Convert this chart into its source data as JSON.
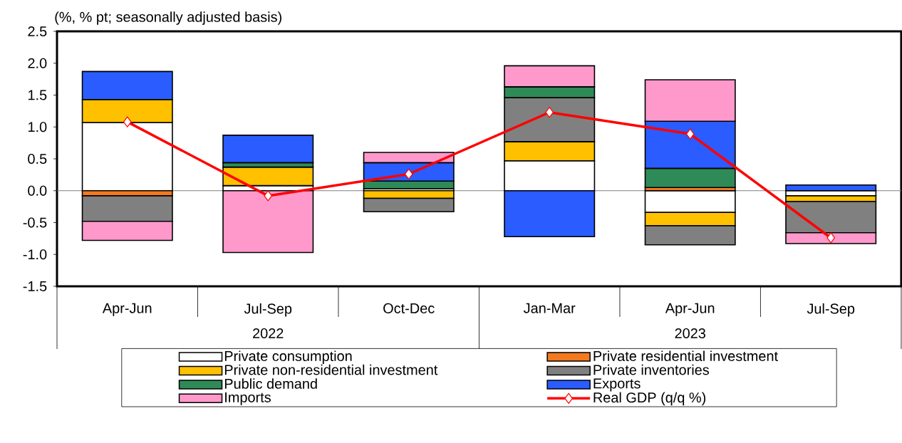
{
  "chart_data": {
    "type": "bar",
    "stacked": true,
    "ylabel": "(%, % pt; seasonally adjusted basis)",
    "categories": [
      "Apr-Jun",
      "Jul-Sep",
      "Oct-Dec",
      "Jan-Mar",
      "Apr-Jun",
      "Jul-Sep"
    ],
    "annotations": [
      "2022",
      "2023"
    ],
    "ylim": [
      -1.5,
      2.5
    ],
    "yticks": [
      {
        "value": -1.5,
        "label": "-1.5"
      },
      {
        "value": -1.0,
        "label": "-1.0"
      },
      {
        "value": -0.5,
        "label": "-0.5"
      },
      {
        "value": 0,
        "label": "0.0"
      },
      {
        "value": 0.5,
        "label": "0.5"
      },
      {
        "value": 1.0,
        "label": "1.0"
      },
      {
        "value": 1.5,
        "label": "1.5"
      },
      {
        "value": 2.0,
        "label": "2.0"
      },
      {
        "value": 2.5,
        "label": "2.5"
      }
    ],
    "ref_lines": [
      {
        "axis": "y",
        "value": 0,
        "color": "#808080"
      }
    ],
    "legend": "bottom",
    "series": [
      {
        "name": "Private consumption",
        "color": "#ffffff",
        "values": [
          1.07,
          0.08,
          0.03,
          0.47,
          -0.34,
          -0.08
        ]
      },
      {
        "name": "Private residential investment",
        "color": "#f47920",
        "values": [
          -0.08,
          null,
          null,
          null,
          0.05,
          null
        ]
      },
      {
        "name": "Private non-residential investment",
        "color": "#ffc000",
        "values": [
          0.36,
          0.29,
          -0.12,
          0.3,
          -0.21,
          -0.09
        ]
      },
      {
        "name": "Private inventories",
        "color": "#808080",
        "values": [
          -0.4,
          null,
          -0.21,
          0.69,
          -0.3,
          -0.49
        ]
      },
      {
        "name": "Public demand",
        "color": "#2e8b57",
        "values": [
          null,
          0.07,
          0.12,
          0.17,
          0.3,
          null
        ]
      },
      {
        "name": "Exports",
        "color": "#2a5cff",
        "values": [
          0.44,
          0.43,
          0.29,
          -0.72,
          0.74,
          0.09
        ]
      },
      {
        "name": "Imports",
        "color": "#ff99cc",
        "values": [
          -0.3,
          -0.97,
          0.16,
          0.33,
          0.65,
          -0.17
        ]
      },
      {
        "name": "Real GDP (q/q %)",
        "type": "line",
        "color": "#ff0000",
        "marker": "diamond",
        "values": [
          1.08,
          -0.08,
          0.26,
          1.23,
          0.89,
          -0.74
        ]
      }
    ]
  }
}
